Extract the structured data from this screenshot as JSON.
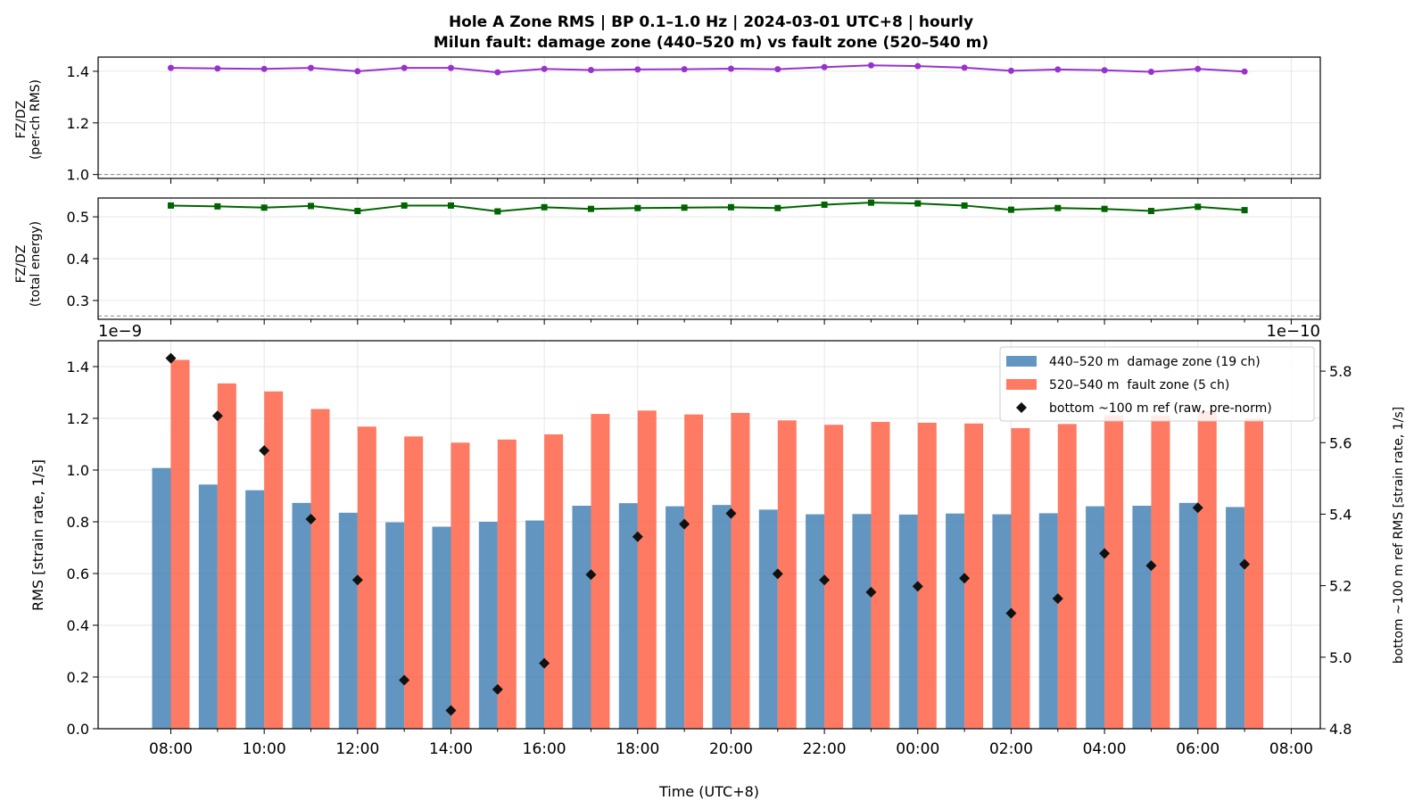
{
  "chart_data": {
    "title_line1": "Hole A Zone RMS  |  BP 0.1–1.0 Hz  |  2024-03-01 UTC+8  |  hourly",
    "title_line2": "Milun fault: damage zone (440–520 m) vs fault zone (520–540 m)",
    "x_tick_labels": [
      "08:00",
      "10:00",
      "12:00",
      "14:00",
      "16:00",
      "18:00",
      "20:00",
      "22:00",
      "00:00",
      "02:00",
      "04:00",
      "06:00",
      "08:00"
    ],
    "xlabel": "Time (UTC+8)",
    "panels": [
      {
        "id": "ratio_rms",
        "type": "line",
        "ylabel_line1": "FZ/DZ",
        "ylabel_line2": "(per-ch RMS)",
        "ylim": [
          0.985,
          1.455
        ],
        "yticks": [
          "1.0",
          "1.2",
          "1.4"
        ],
        "yticks_values": [
          1.0,
          1.2,
          1.4
        ],
        "reference_line": 1.0,
        "color": "#9932CC",
        "marker": "circle",
        "values": [
          1.413,
          1.411,
          1.409,
          1.413,
          1.4,
          1.413,
          1.413,
          1.396,
          1.409,
          1.405,
          1.407,
          1.408,
          1.41,
          1.408,
          1.416,
          1.423,
          1.42,
          1.414,
          1.402,
          1.407,
          1.404,
          1.398,
          1.409,
          1.399
        ]
      },
      {
        "id": "ratio_energy",
        "type": "line",
        "ylabel_line1": "FZ/DZ",
        "ylabel_line2": "(total energy)",
        "ylim": [
          0.255,
          0.545
        ],
        "yticks": [
          "0.3",
          "0.4",
          "0.5"
        ],
        "yticks_values": [
          0.3,
          0.4,
          0.5
        ],
        "reference_line": 0.263,
        "color": "#006400",
        "marker": "square",
        "values": [
          0.527,
          0.525,
          0.522,
          0.526,
          0.514,
          0.527,
          0.527,
          0.513,
          0.523,
          0.519,
          0.521,
          0.522,
          0.523,
          0.521,
          0.529,
          0.534,
          0.532,
          0.527,
          0.517,
          0.521,
          0.519,
          0.514,
          0.524,
          0.516
        ]
      },
      {
        "id": "zone_rms",
        "type": "bar",
        "ylabel": "RMS  [strain rate, 1/s]",
        "left_offset_label": "1e−9",
        "right_offset_label": "1e−10",
        "ylim": [
          0,
          1.5
        ],
        "yticks": [
          "0.0",
          "0.2",
          "0.4",
          "0.6",
          "0.8",
          "1.0",
          "1.2",
          "1.4"
        ],
        "yticks_values": [
          0,
          0.2,
          0.4,
          0.6,
          0.8,
          1.0,
          1.2,
          1.4
        ],
        "y2label": "bottom ~100 m ref RMS  [strain rate, 1/s]",
        "y2lim": [
          4.8,
          5.885
        ],
        "y2ticks": [
          "4.8",
          "5.0",
          "5.2",
          "5.4",
          "5.6",
          "5.8"
        ],
        "y2ticks_values": [
          4.8,
          5.0,
          5.2,
          5.4,
          5.6,
          5.8
        ],
        "series": [
          {
            "name": "440–520 m  damage zone (19 ch)",
            "color": "#4682B4",
            "values": [
              1.008,
              0.944,
              0.922,
              0.873,
              0.835,
              0.798,
              0.781,
              0.8,
              0.805,
              0.862,
              0.872,
              0.86,
              0.865,
              0.847,
              0.829,
              0.83,
              0.828,
              0.832,
              0.829,
              0.833,
              0.86,
              0.862,
              0.873,
              0.857
            ]
          },
          {
            "name": "520–540 m  fault zone (5 ch)",
            "color": "#FF6347",
            "values": [
              1.426,
              1.335,
              1.304,
              1.236,
              1.168,
              1.13,
              1.106,
              1.118,
              1.138,
              1.217,
              1.23,
              1.215,
              1.221,
              1.192,
              1.175,
              1.186,
              1.183,
              1.18,
              1.162,
              1.178,
              1.212,
              1.211,
              1.229,
              1.199
            ]
          },
          {
            "name": "bottom ~100 m ref (raw, pre-norm)",
            "color": "#111111",
            "marker": "diamond",
            "axis": "right",
            "values": [
              5.836,
              5.675,
              5.578,
              5.386,
              5.216,
              4.936,
              4.851,
              4.91,
              4.983,
              5.231,
              5.337,
              5.372,
              5.402,
              5.233,
              5.216,
              5.182,
              5.198,
              5.221,
              5.123,
              5.164,
              5.29,
              5.256,
              5.418,
              5.26
            ]
          }
        ]
      }
    ]
  }
}
